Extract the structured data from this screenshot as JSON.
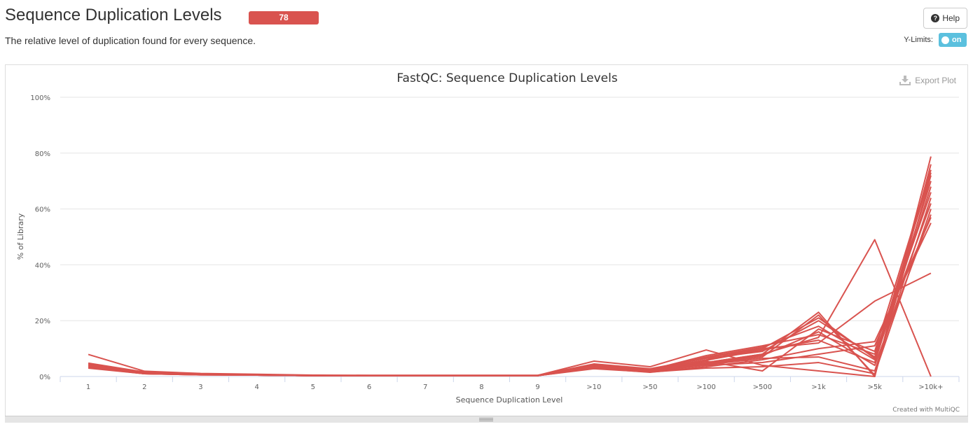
{
  "header": {
    "title": "Sequence Duplication Levels",
    "badge_count": "78",
    "badge_color": "#d9534f",
    "description": "The relative level of duplication found for every sequence."
  },
  "controls": {
    "help_label": "Help",
    "help_icon": "question-circle-icon",
    "ylimits_label": "Y-Limits:",
    "toggle_label": "on",
    "export_label": "Export Plot",
    "export_icon": "download-icon"
  },
  "credit": "Created with MultiQC",
  "chart_data": {
    "type": "line",
    "title": "FastQC: Sequence Duplication Levels",
    "xlabel": "Sequence Duplication Level",
    "ylabel": "% of Library",
    "categories": [
      "1",
      "2",
      "3",
      "4",
      "5",
      "6",
      "7",
      "8",
      "9",
      ">10",
      ">50",
      ">100",
      ">500",
      ">1k",
      ">5k",
      ">10k+"
    ],
    "ylim": [
      0,
      100
    ],
    "yticks": [
      "0%",
      "20%",
      "40%",
      "60%",
      "80%",
      "100%"
    ],
    "grid": true,
    "legend": "none",
    "line_color": "#d9534f",
    "series": [
      {
        "values": [
          7.9,
          1.9,
          1.1,
          0.8,
          0.5,
          0.4,
          0.4,
          0.4,
          0.4,
          5.5,
          3.5,
          9.5,
          4.0,
          2.0,
          0.0,
          78.8
        ]
      },
      {
        "values": [
          3.0,
          1.0,
          0.6,
          0.5,
          0.3,
          0.3,
          0.3,
          0.3,
          0.3,
          3.0,
          2.0,
          5.0,
          8.0,
          14.0,
          49.0,
          0.0
        ]
      },
      {
        "values": [
          4.5,
          1.5,
          0.9,
          0.6,
          0.4,
          0.3,
          0.3,
          0.3,
          0.3,
          4.0,
          2.5,
          6.0,
          10.0,
          12.0,
          27.0,
          37.0
        ]
      },
      {
        "values": [
          4.0,
          1.2,
          0.8,
          0.6,
          0.4,
          0.3,
          0.3,
          0.3,
          0.3,
          3.5,
          2.0,
          5.0,
          8.0,
          23.0,
          0.0,
          76.0
        ]
      },
      {
        "values": [
          3.5,
          1.0,
          0.7,
          0.5,
          0.3,
          0.3,
          0.3,
          0.3,
          0.3,
          3.2,
          1.8,
          4.5,
          7.0,
          22.0,
          0.5,
          72.0
        ]
      },
      {
        "values": [
          3.8,
          1.1,
          0.7,
          0.5,
          0.3,
          0.3,
          0.3,
          0.3,
          0.3,
          3.8,
          2.2,
          7.0,
          10.5,
          18.0,
          6.0,
          70.0
        ]
      },
      {
        "values": [
          4.2,
          1.3,
          0.8,
          0.6,
          0.4,
          0.3,
          0.3,
          0.3,
          0.3,
          4.2,
          2.4,
          7.5,
          11.0,
          15.0,
          8.0,
          66.0
        ]
      },
      {
        "values": [
          3.2,
          1.0,
          0.6,
          0.5,
          0.3,
          0.3,
          0.3,
          0.3,
          0.3,
          3.0,
          1.5,
          3.5,
          6.0,
          10.0,
          12.5,
          55.0
        ]
      },
      {
        "values": [
          3.6,
          1.1,
          0.7,
          0.5,
          0.3,
          0.3,
          0.3,
          0.3,
          0.3,
          3.4,
          1.9,
          4.0,
          5.0,
          8.0,
          11.0,
          57.0
        ]
      },
      {
        "values": [
          4.8,
          1.6,
          1.0,
          0.7,
          0.4,
          0.4,
          0.4,
          0.4,
          0.4,
          4.5,
          2.8,
          6.5,
          9.0,
          20.0,
          7.0,
          62.0
        ]
      },
      {
        "values": [
          3.3,
          1.0,
          0.6,
          0.5,
          0.3,
          0.3,
          0.3,
          0.3,
          0.3,
          2.8,
          1.6,
          3.0,
          3.5,
          5.0,
          1.0,
          60.0
        ]
      },
      {
        "values": [
          4.1,
          1.3,
          0.8,
          0.6,
          0.4,
          0.3,
          0.3,
          0.3,
          0.3,
          3.9,
          2.1,
          5.5,
          2.0,
          17.0,
          9.0,
          74.0
        ]
      },
      {
        "values": [
          3.9,
          1.2,
          0.8,
          0.6,
          0.4,
          0.3,
          0.3,
          0.3,
          0.3,
          3.6,
          2.0,
          5.8,
          9.5,
          13.0,
          5.0,
          68.0
        ]
      },
      {
        "values": [
          3.4,
          1.0,
          0.7,
          0.5,
          0.3,
          0.3,
          0.3,
          0.3,
          0.3,
          3.1,
          1.7,
          4.2,
          6.5,
          7.0,
          2.0,
          64.0
        ]
      },
      {
        "values": [
          4.6,
          1.5,
          0.9,
          0.7,
          0.4,
          0.4,
          0.4,
          0.4,
          0.4,
          4.3,
          2.6,
          6.8,
          10.0,
          21.0,
          6.5,
          73.0
        ]
      },
      {
        "values": [
          3.7,
          1.1,
          0.7,
          0.5,
          0.3,
          0.3,
          0.3,
          0.3,
          0.3,
          3.3,
          1.8,
          4.8,
          7.5,
          16.0,
          4.0,
          58.0
        ]
      }
    ]
  }
}
